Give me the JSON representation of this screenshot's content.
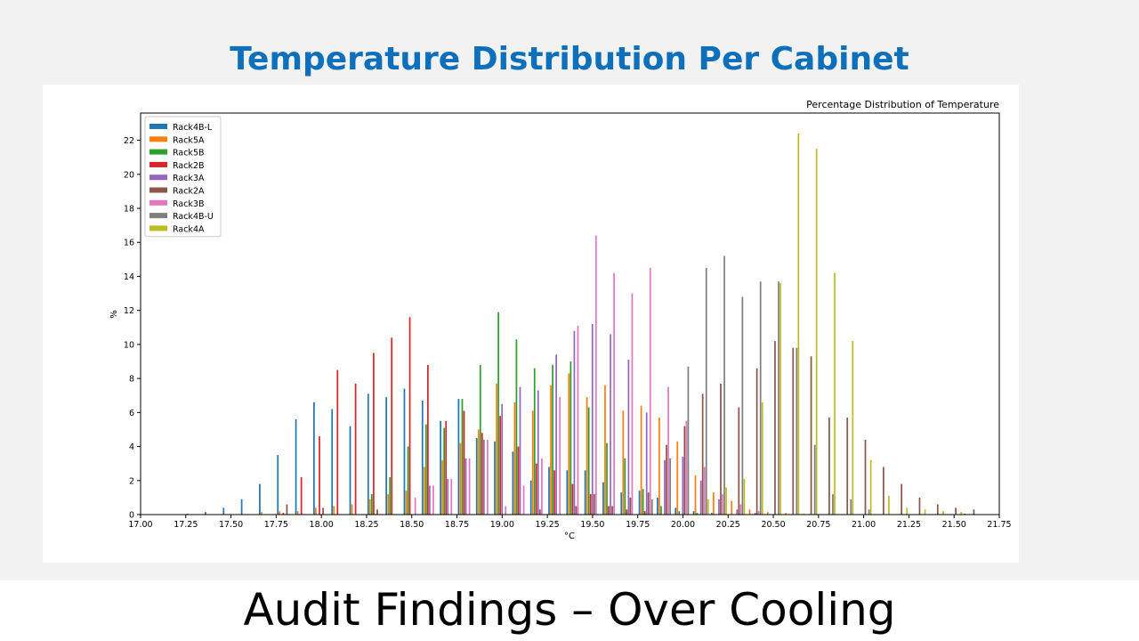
{
  "slide": {
    "title": "Temperature Distribution Per Cabinet",
    "subtitle": "Audit Findings – Over Cooling",
    "title_color": "#0e6fba"
  },
  "chart_data": {
    "type": "bar",
    "title": "Percentage Distribution of Temperature",
    "xlabel": "°C",
    "ylabel": "%",
    "xlim": [
      17.0,
      21.75
    ],
    "ylim": [
      0,
      23.6
    ],
    "xticks": [
      17.0,
      17.25,
      17.5,
      17.75,
      18.0,
      18.25,
      18.5,
      18.75,
      19.0,
      19.25,
      19.5,
      19.75,
      20.0,
      20.25,
      20.5,
      20.75,
      21.0,
      21.25,
      21.5,
      21.75
    ],
    "xtick_labels": [
      "17.00",
      "17.25",
      "17.50",
      "17.75",
      "18.00",
      "18.25",
      "18.50",
      "18.75",
      "19.00",
      "19.25",
      "19.50",
      "19.75",
      "20.00",
      "20.25",
      "20.50",
      "20.75",
      "21.00",
      "21.25",
      "21.50",
      "21.75"
    ],
    "yticks": [
      0,
      2,
      4,
      6,
      8,
      10,
      12,
      14,
      16,
      18,
      20,
      22
    ],
    "ytick_labels": [
      "0",
      "2",
      "4",
      "6",
      "8",
      "10",
      "12",
      "14",
      "16",
      "18",
      "20",
      "22"
    ],
    "bin_width": 0.1,
    "grid": false,
    "legend_position": "top-left",
    "series": [
      {
        "name": "Rack4B-L",
        "color": "#1f77b4",
        "points": [
          [
            17.3,
            0.05
          ],
          [
            17.4,
            0.15
          ],
          [
            17.5,
            0.4
          ],
          [
            17.6,
            0.9
          ],
          [
            17.7,
            1.8
          ],
          [
            17.8,
            3.5
          ],
          [
            17.9,
            5.6
          ],
          [
            18.0,
            6.6
          ],
          [
            18.1,
            6.2
          ],
          [
            18.2,
            5.2
          ],
          [
            18.3,
            7.1
          ],
          [
            18.4,
            6.9
          ],
          [
            18.5,
            7.4
          ],
          [
            18.6,
            6.7
          ],
          [
            18.7,
            5.5
          ],
          [
            18.8,
            6.8
          ],
          [
            18.9,
            4.5
          ],
          [
            19.0,
            4.3
          ],
          [
            19.1,
            3.7
          ],
          [
            19.2,
            2.0
          ],
          [
            19.3,
            2.8
          ],
          [
            19.4,
            2.6
          ],
          [
            19.5,
            2.6
          ],
          [
            19.6,
            1.9
          ],
          [
            19.7,
            1.3
          ],
          [
            19.8,
            1.4
          ],
          [
            19.9,
            1.0
          ],
          [
            20.0,
            0.4
          ],
          [
            20.1,
            0.2
          ],
          [
            20.2,
            0.1
          ],
          [
            21.6,
            0.05
          ]
        ]
      },
      {
        "name": "Rack5A",
        "color": "#ff7f0e",
        "points": [
          [
            17.7,
            0.15
          ],
          [
            17.8,
            0.2
          ],
          [
            17.9,
            0.2
          ],
          [
            18.0,
            0.4
          ],
          [
            18.1,
            0.5
          ],
          [
            18.2,
            0.6
          ],
          [
            18.3,
            0.9
          ],
          [
            18.4,
            1.2
          ],
          [
            18.5,
            1.4
          ],
          [
            18.6,
            2.8
          ],
          [
            18.7,
            3.2
          ],
          [
            18.8,
            4.2
          ],
          [
            18.9,
            5.0
          ],
          [
            19.0,
            7.7
          ],
          [
            19.1,
            6.6
          ],
          [
            19.2,
            6.1
          ],
          [
            19.3,
            7.6
          ],
          [
            19.4,
            8.3
          ],
          [
            19.5,
            6.9
          ],
          [
            19.6,
            7.6
          ],
          [
            19.7,
            6.1
          ],
          [
            19.8,
            6.4
          ],
          [
            19.9,
            5.7
          ],
          [
            20.0,
            4.3
          ],
          [
            20.1,
            2.3
          ],
          [
            20.2,
            1.3
          ],
          [
            20.3,
            0.8
          ],
          [
            20.4,
            0.3
          ],
          [
            20.5,
            0.15
          ],
          [
            20.6,
            0.1
          ],
          [
            20.7,
            0.05
          ]
        ]
      },
      {
        "name": "Rack5B",
        "color": "#2ca02c",
        "points": [
          [
            18.3,
            1.2
          ],
          [
            18.4,
            2.2
          ],
          [
            18.5,
            4.0
          ],
          [
            18.6,
            5.3
          ],
          [
            18.7,
            5.1
          ],
          [
            18.8,
            6.8
          ],
          [
            18.9,
            8.8
          ],
          [
            19.0,
            11.9
          ],
          [
            19.1,
            10.3
          ],
          [
            19.2,
            8.6
          ],
          [
            19.3,
            8.8
          ],
          [
            19.4,
            9.0
          ],
          [
            19.5,
            6.3
          ],
          [
            19.6,
            4.2
          ],
          [
            19.7,
            3.3
          ],
          [
            19.8,
            1.5
          ],
          [
            19.9,
            0.5
          ],
          [
            20.0,
            0.2
          ],
          [
            20.1,
            0.1
          ]
        ]
      },
      {
        "name": "Rack2B",
        "color": "#d62728",
        "points": [
          [
            17.8,
            0.1
          ],
          [
            17.9,
            2.2
          ],
          [
            18.0,
            4.6
          ],
          [
            18.1,
            8.5
          ],
          [
            18.2,
            7.7
          ],
          [
            18.3,
            9.5
          ],
          [
            18.4,
            10.4
          ],
          [
            18.5,
            11.6
          ],
          [
            18.6,
            8.8
          ],
          [
            18.7,
            5.5
          ],
          [
            18.8,
            6.1
          ],
          [
            18.9,
            4.8
          ],
          [
            19.0,
            5.8
          ],
          [
            19.1,
            4.0
          ],
          [
            19.2,
            3.0
          ],
          [
            19.3,
            2.6
          ],
          [
            19.4,
            1.8
          ],
          [
            19.5,
            1.2
          ],
          [
            19.6,
            0.5
          ],
          [
            19.7,
            0.3
          ],
          [
            19.8,
            0.2
          ]
        ]
      },
      {
        "name": "Rack3A",
        "color": "#9467bd",
        "points": [
          [
            18.6,
            1.7
          ],
          [
            18.7,
            2.1
          ],
          [
            18.8,
            3.3
          ],
          [
            18.9,
            4.4
          ],
          [
            19.0,
            6.5
          ],
          [
            19.1,
            7.5
          ],
          [
            19.2,
            7.3
          ],
          [
            19.3,
            9.4
          ],
          [
            19.4,
            10.8
          ],
          [
            19.5,
            11.2
          ],
          [
            19.6,
            10.6
          ],
          [
            19.7,
            9.1
          ],
          [
            19.8,
            6.0
          ],
          [
            19.9,
            3.2
          ],
          [
            20.0,
            3.4
          ],
          [
            20.1,
            2.0
          ],
          [
            20.2,
            0.9
          ],
          [
            20.3,
            0.3
          ],
          [
            20.4,
            0.1
          ]
        ]
      },
      {
        "name": "Rack2A",
        "color": "#8c564b",
        "points": [
          [
            17.8,
            0.6
          ],
          [
            18.0,
            0.4
          ],
          [
            18.3,
            0.3
          ],
          [
            19.2,
            0.3
          ],
          [
            19.4,
            0.5
          ],
          [
            19.5,
            1.2
          ],
          [
            19.6,
            0.5
          ],
          [
            19.7,
            1.0
          ],
          [
            19.8,
            1.3
          ],
          [
            19.9,
            4.1
          ],
          [
            20.0,
            5.2
          ],
          [
            20.1,
            7.1
          ],
          [
            20.2,
            7.7
          ],
          [
            20.3,
            6.3
          ],
          [
            20.4,
            8.6
          ],
          [
            20.5,
            10.2
          ],
          [
            20.6,
            9.8
          ],
          [
            20.7,
            9.3
          ],
          [
            20.8,
            5.7
          ],
          [
            20.9,
            5.7
          ],
          [
            21.0,
            4.4
          ],
          [
            21.1,
            2.8
          ],
          [
            21.2,
            1.8
          ],
          [
            21.3,
            1.0
          ],
          [
            21.4,
            0.6
          ],
          [
            21.5,
            0.4
          ],
          [
            21.6,
            0.3
          ]
        ]
      },
      {
        "name": "Rack3B",
        "color": "#e377c2",
        "points": [
          [
            18.5,
            1.0
          ],
          [
            18.6,
            1.7
          ],
          [
            18.7,
            2.1
          ],
          [
            18.8,
            3.3
          ],
          [
            18.9,
            4.4
          ],
          [
            19.0,
            0.5
          ],
          [
            19.1,
            1.7
          ],
          [
            19.2,
            3.3
          ],
          [
            19.3,
            6.9
          ],
          [
            19.4,
            11.1
          ],
          [
            19.5,
            16.4
          ],
          [
            19.6,
            14.2
          ],
          [
            19.7,
            13.0
          ],
          [
            19.8,
            14.5
          ],
          [
            19.9,
            7.5
          ],
          [
            20.0,
            5.5
          ],
          [
            20.1,
            2.8
          ],
          [
            20.2,
            1.2
          ],
          [
            20.3,
            0.6
          ],
          [
            20.4,
            0.2
          ]
        ]
      },
      {
        "name": "Rack4B-U",
        "color": "#7f7f7f",
        "points": [
          [
            19.8,
            0.9
          ],
          [
            19.9,
            3.3
          ],
          [
            20.0,
            8.7
          ],
          [
            20.1,
            14.5
          ],
          [
            20.2,
            15.2
          ],
          [
            20.3,
            12.8
          ],
          [
            20.4,
            13.7
          ],
          [
            20.5,
            13.7
          ],
          [
            20.6,
            9.8
          ],
          [
            20.7,
            4.1
          ],
          [
            20.8,
            1.2
          ],
          [
            20.9,
            0.9
          ],
          [
            21.0,
            0.3
          ]
        ]
      },
      {
        "name": "Rack4A",
        "color": "#bcbd22",
        "points": [
          [
            20.1,
            0.9
          ],
          [
            20.2,
            1.6
          ],
          [
            20.3,
            2.1
          ],
          [
            20.4,
            6.6
          ],
          [
            20.5,
            13.6
          ],
          [
            20.6,
            22.4
          ],
          [
            20.7,
            21.5
          ],
          [
            20.8,
            14.2
          ],
          [
            20.9,
            10.2
          ],
          [
            21.0,
            3.2
          ],
          [
            21.1,
            1.1
          ],
          [
            21.2,
            0.4
          ],
          [
            21.3,
            0.3
          ],
          [
            21.4,
            0.2
          ],
          [
            21.5,
            0.15
          ]
        ]
      }
    ]
  }
}
